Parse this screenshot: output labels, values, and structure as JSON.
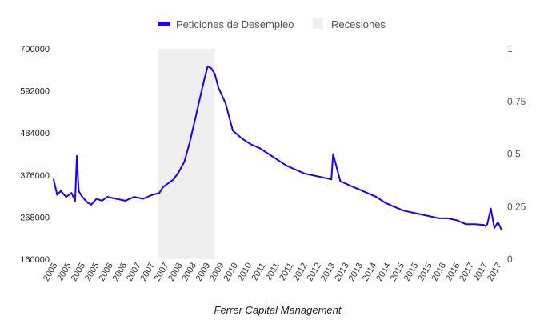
{
  "colors": {
    "series": "#1a00ff",
    "recession": "#efefef"
  },
  "legend": {
    "series_label": "Peticiones de Desempleo",
    "recession_label": "Recesiones"
  },
  "caption": "Ferrer Capital Management",
  "chart_data": {
    "type": "line",
    "title": "",
    "xlabel": "",
    "ylabel": "",
    "legend_position": "top-center",
    "grid": false,
    "ylim": [
      160000,
      700000
    ],
    "y_ticks": [
      "700000",
      "592000",
      "484000",
      "376000",
      "268000",
      "160000"
    ],
    "y2lim": [
      0,
      1
    ],
    "y2_ticks": [
      "1",
      "0,75",
      "0,5",
      "0,25",
      "0"
    ],
    "x_range": [
      2005.0,
      2017.5
    ],
    "x_tick_labels": [
      "2005",
      "2005",
      "2005",
      "2005",
      "2006",
      "2006",
      "2007",
      "2007",
      "2007",
      "2008",
      "2008",
      "2009",
      "2009",
      "2010",
      "2010",
      "2011",
      "2011",
      "2011",
      "2012",
      "2012",
      "2013",
      "2013",
      "2013",
      "2014",
      "2014",
      "2015",
      "2015",
      "2015",
      "2016",
      "2016",
      "2017",
      "2017",
      "2017"
    ],
    "recessions": [
      {
        "start": 2007.92,
        "end": 2009.5,
        "value": 1
      }
    ],
    "series": [
      {
        "name": "Peticiones de Desempleo",
        "x": [
          2005.0,
          2005.1,
          2005.2,
          2005.35,
          2005.5,
          2005.6,
          2005.65,
          2005.7,
          2005.8,
          2005.95,
          2006.05,
          2006.2,
          2006.35,
          2006.5,
          2006.75,
          2007.0,
          2007.25,
          2007.5,
          2007.75,
          2007.95,
          2008.05,
          2008.2,
          2008.35,
          2008.5,
          2008.65,
          2008.8,
          2008.95,
          2009.1,
          2009.2,
          2009.3,
          2009.4,
          2009.5,
          2009.6,
          2009.8,
          2010.0,
          2010.25,
          2010.5,
          2010.75,
          2011.0,
          2011.25,
          2011.5,
          2011.75,
          2012.0,
          2012.25,
          2012.5,
          2012.75,
          2012.8,
          2013.0,
          2013.25,
          2013.5,
          2013.75,
          2014.0,
          2014.25,
          2014.5,
          2014.75,
          2015.0,
          2015.25,
          2015.5,
          2015.75,
          2016.0,
          2016.25,
          2016.5,
          2016.75,
          2017.0,
          2017.05,
          2017.1,
          2017.2,
          2017.3,
          2017.4,
          2017.5
        ],
        "values": [
          365000,
          325000,
          335000,
          320000,
          330000,
          310000,
          425000,
          335000,
          320000,
          305000,
          300000,
          315000,
          310000,
          320000,
          315000,
          310000,
          320000,
          315000,
          325000,
          330000,
          345000,
          355000,
          365000,
          385000,
          410000,
          460000,
          520000,
          580000,
          620000,
          655000,
          650000,
          635000,
          600000,
          560000,
          490000,
          470000,
          455000,
          445000,
          430000,
          415000,
          400000,
          390000,
          380000,
          375000,
          370000,
          365000,
          430000,
          360000,
          350000,
          340000,
          330000,
          320000,
          305000,
          295000,
          285000,
          280000,
          275000,
          270000,
          265000,
          265000,
          260000,
          250000,
          250000,
          248000,
          245000,
          250000,
          290000,
          240000,
          255000,
          235000
        ]
      }
    ]
  }
}
